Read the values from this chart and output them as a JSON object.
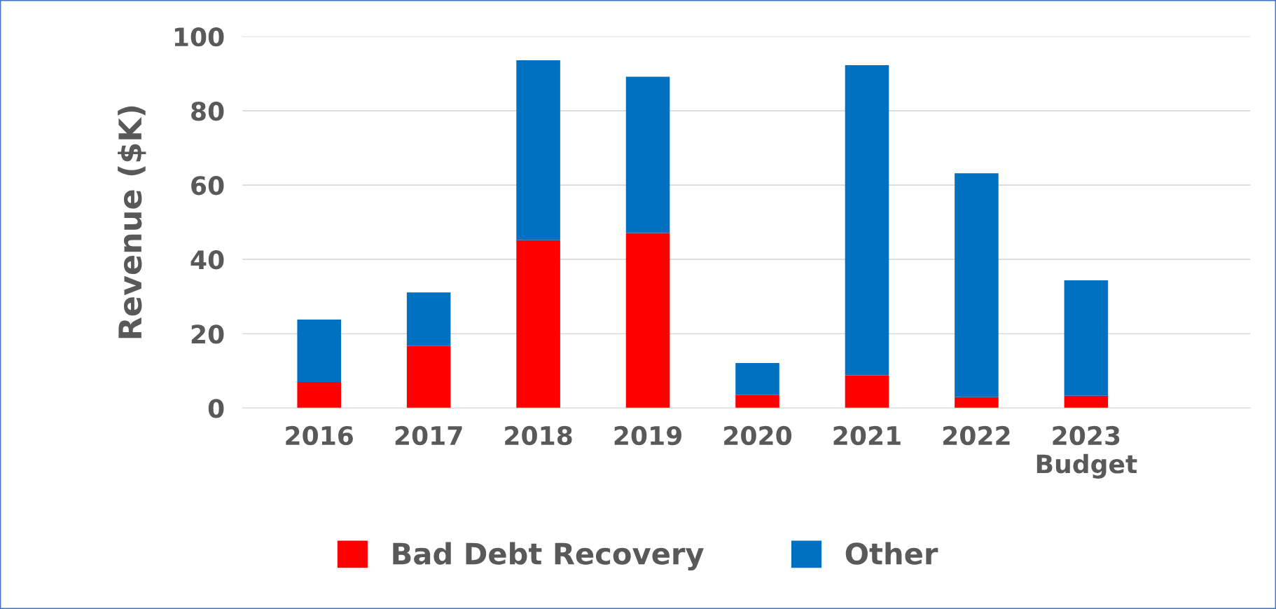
{
  "chart_data": {
    "type": "bar",
    "stacked": true,
    "ylabel": "Revenue ($K)",
    "categories": [
      "2016",
      "2017",
      "2018",
      "2019",
      "2020",
      "2021",
      "2022",
      "2023\nBudget",
      null
    ],
    "series": [
      {
        "name": "Bad Debt Recovery",
        "color": "#ff0000",
        "values": [
          7.0,
          16.7,
          45.2,
          47.1,
          3.5,
          8.8,
          2.9,
          3.3,
          null
        ]
      },
      {
        "name": "Other",
        "color": "#0070c0",
        "values": [
          16.8,
          14.4,
          48.4,
          42.1,
          8.6,
          83.5,
          60.3,
          31.1,
          null
        ]
      }
    ],
    "ylim": [
      0,
      100
    ],
    "yticks": [
      0,
      20,
      40,
      60,
      80,
      100
    ],
    "grid": "y",
    "legend": "bottom"
  }
}
